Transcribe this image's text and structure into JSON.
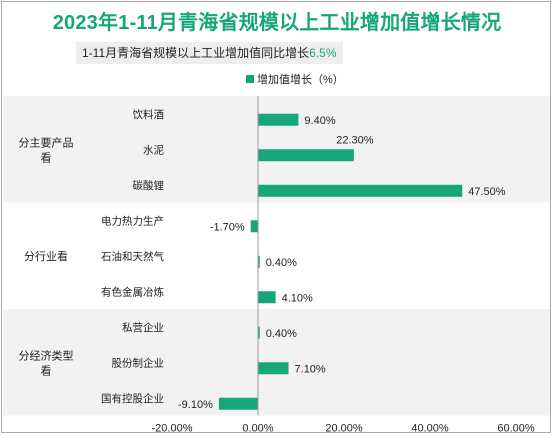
{
  "title": "2023年1-11月青海省规模以上工业增加值增长情况",
  "subtitle": {
    "text": "1-11月青海省规模以上工业增加值同比增长",
    "highlight": "6.5%"
  },
  "colors": {
    "bar": "#17a67a",
    "title": "#17a67a",
    "band": "#f2f2f2"
  },
  "chart_data": {
    "type": "bar",
    "orientation": "horizontal",
    "legend": {
      "label": "增加值增长（%）",
      "position": "top"
    },
    "xlim": [
      -20,
      60
    ],
    "x_ticks": [
      "-20.00%",
      "0.00%",
      "20.00%",
      "40.00%",
      "60.00%"
    ],
    "grid": false,
    "groups": [
      {
        "name": "分主要产品看",
        "shaded": true,
        "categories": [
          "饮料酒",
          "水泥",
          "碳酸锂"
        ],
        "values": [
          9.4,
          22.3,
          47.5
        ],
        "labels": [
          "9.40%",
          "22.30%",
          "47.50%"
        ]
      },
      {
        "name": "分行业看",
        "shaded": false,
        "categories": [
          "电力热力生产",
          "石油和天然气",
          "有色金属冶炼"
        ],
        "values": [
          -1.7,
          0.4,
          4.1
        ],
        "labels": [
          "-1.70%",
          "0.40%",
          "4.10%"
        ]
      },
      {
        "name": "分经济类型看",
        "shaded": true,
        "categories": [
          "私营企业",
          "股份制企业",
          "国有控股企业"
        ],
        "values": [
          0.4,
          7.1,
          -9.1
        ],
        "labels": [
          "0.40%",
          "7.10%",
          "-9.10%"
        ]
      }
    ]
  }
}
